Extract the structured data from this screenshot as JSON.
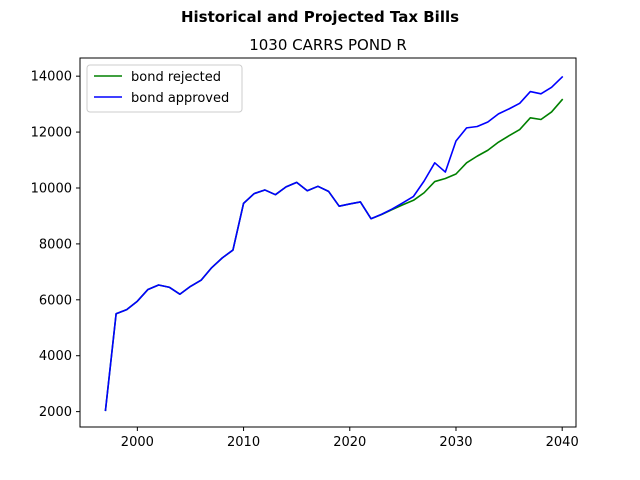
{
  "chart_data": {
    "type": "line",
    "suptitle": "Historical and Projected Tax Bills",
    "title": "1030 CARRS POND R",
    "xlabel": "",
    "ylabel": "",
    "xlim": [
      1994.6,
      2041.3
    ],
    "ylim": [
      1450,
      14650
    ],
    "xticks": [
      2000,
      2010,
      2020,
      2030,
      2040
    ],
    "yticks": [
      2000,
      4000,
      6000,
      8000,
      10000,
      12000,
      14000
    ],
    "grid": false,
    "legend_position": "top-left",
    "series": [
      {
        "name": "bond rejected",
        "color": "#008000",
        "x": [
          1997,
          1998,
          1999,
          2000,
          2001,
          2002,
          2003,
          2004,
          2005,
          2006,
          2007,
          2008,
          2009,
          2010,
          2011,
          2012,
          2013,
          2014,
          2015,
          2016,
          2017,
          2018,
          2019,
          2020,
          2021,
          2022,
          2023,
          2024,
          2025,
          2026,
          2027,
          2028,
          2029,
          2030,
          2031,
          2032,
          2033,
          2034,
          2035,
          2036,
          2037,
          2038,
          2039,
          2040
        ],
        "y": [
          2050,
          5500,
          5650,
          5950,
          6370,
          6530,
          6450,
          6200,
          6480,
          6700,
          7150,
          7500,
          7780,
          9450,
          9800,
          9930,
          9760,
          10040,
          10200,
          9900,
          10060,
          9880,
          9350,
          9430,
          9500,
          8900,
          9050,
          9230,
          9400,
          9560,
          9830,
          10230,
          10340,
          10500,
          10900,
          11140,
          11350,
          11640,
          11870,
          12090,
          12510,
          12450,
          12720,
          13160
        ]
      },
      {
        "name": "bond approved",
        "color": "#0000ff",
        "x": [
          1997,
          1998,
          1999,
          2000,
          2001,
          2002,
          2003,
          2004,
          2005,
          2006,
          2007,
          2008,
          2009,
          2010,
          2011,
          2012,
          2013,
          2014,
          2015,
          2016,
          2017,
          2018,
          2019,
          2020,
          2021,
          2022,
          2023,
          2024,
          2025,
          2026,
          2027,
          2028,
          2029,
          2030,
          2031,
          2032,
          2033,
          2034,
          2035,
          2036,
          2037,
          2038,
          2039,
          2040
        ],
        "y": [
          2050,
          5500,
          5650,
          5950,
          6370,
          6530,
          6450,
          6200,
          6480,
          6700,
          7150,
          7500,
          7780,
          9450,
          9800,
          9930,
          9760,
          10040,
          10200,
          9900,
          10060,
          9880,
          9350,
          9430,
          9500,
          8900,
          9060,
          9250,
          9470,
          9700,
          10250,
          10900,
          10570,
          11680,
          12150,
          12200,
          12360,
          12650,
          12830,
          13030,
          13450,
          13370,
          13600,
          13970
        ]
      }
    ]
  }
}
